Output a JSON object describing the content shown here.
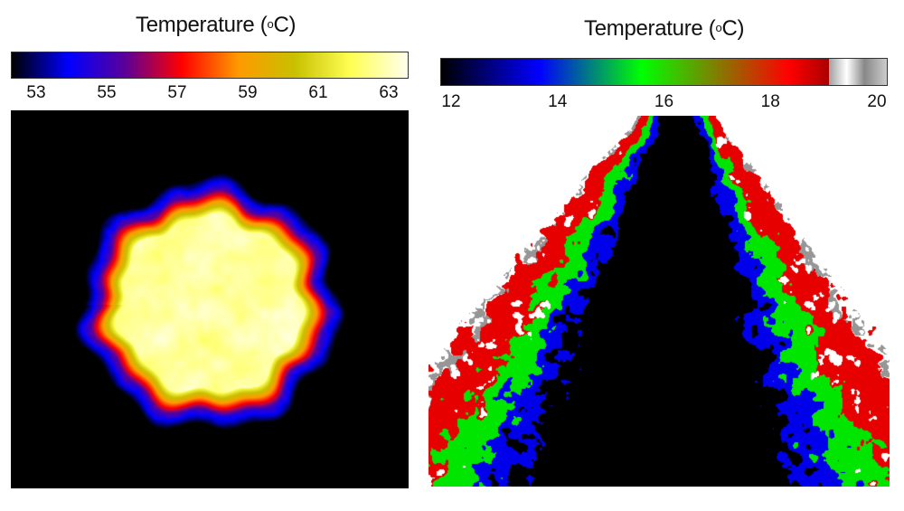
{
  "chart_data": [
    {
      "type": "heatmap",
      "title": "Temperature (°C)",
      "title_text": "Temperature (",
      "title_degree": "o",
      "title_unit": "C)",
      "colorbar_ticks": [
        "53",
        "55",
        "57",
        "59",
        "61",
        "63"
      ],
      "range": [
        52.5,
        63.3
      ],
      "colormap": [
        "#000000",
        "#0000ff",
        "#5b0099",
        "#ff0000",
        "#ff9a00",
        "#c8c000",
        "#ffff55",
        "#ffffee"
      ],
      "background_color": "#000000",
      "description_values": {
        "core": 63,
        "rim": 57,
        "outside": 53
      }
    },
    {
      "type": "heatmap",
      "title": "Temperature (°C)",
      "title_text": "Temperature (",
      "title_degree": "o",
      "title_unit": "C)",
      "colorbar_ticks": [
        "12",
        "14",
        "16",
        "18",
        "20"
      ],
      "range": [
        11.6,
        20.4
      ],
      "colormap": [
        "#000000",
        "#0000ff",
        "#00ff00",
        "#ff0000",
        "#aa0000",
        "#a0a0a0"
      ],
      "background_color": "#ffffff",
      "description_values": {
        "core": 12,
        "mid": 16,
        "edge": 18
      }
    }
  ]
}
